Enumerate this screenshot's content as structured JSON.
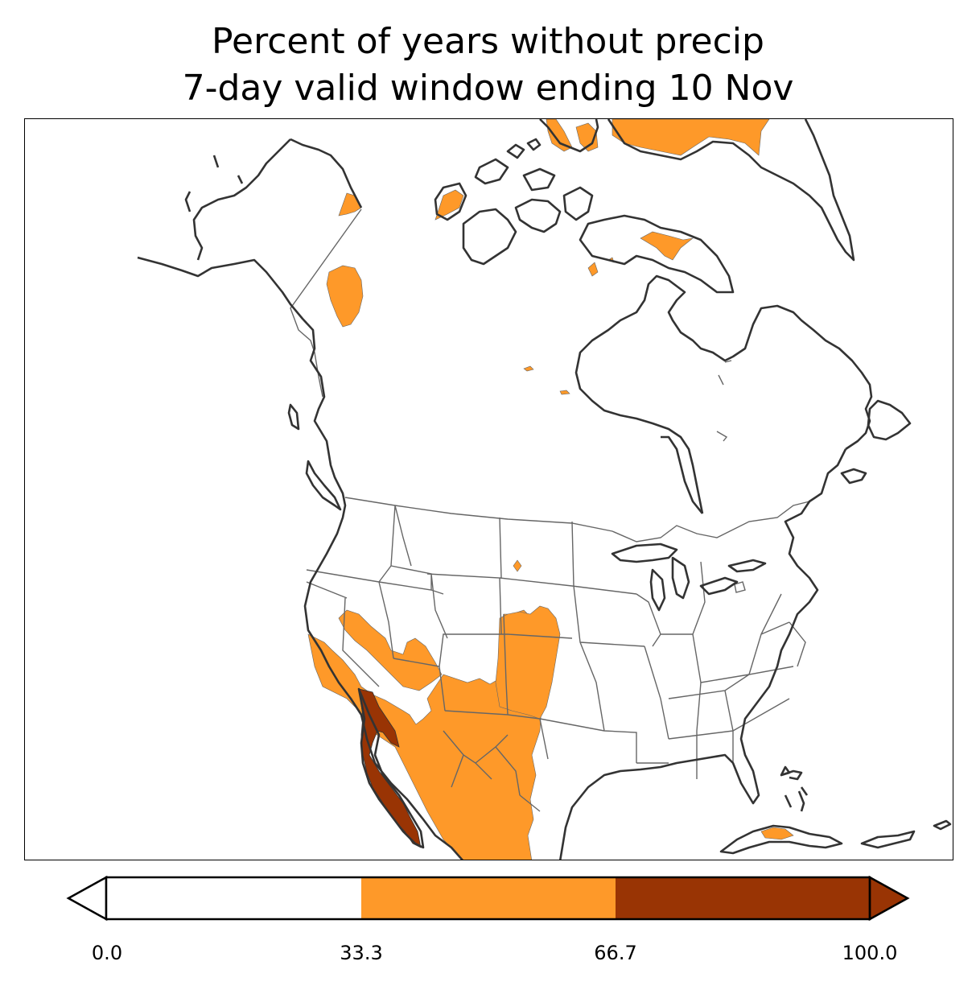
{
  "title": {
    "line1": "Percent of years without precip",
    "line2": "7-day valid window ending 10 Nov"
  },
  "colors": {
    "background": "#ffffff",
    "level_low": "#ffffff",
    "level_mid": "#fe9929",
    "level_high": "#993404",
    "coastline": "#333333",
    "borders": "#666666"
  },
  "colorbar": {
    "ticks": [
      "0.0",
      "33.3",
      "66.7",
      "100.0"
    ],
    "levels": [
      {
        "from": 0.0,
        "to": 33.3,
        "color": "#ffffff"
      },
      {
        "from": 33.3,
        "to": 66.7,
        "color": "#fe9929"
      },
      {
        "from": 66.7,
        "to": 100.0,
        "color": "#993404"
      }
    ],
    "extend": "both"
  }
}
